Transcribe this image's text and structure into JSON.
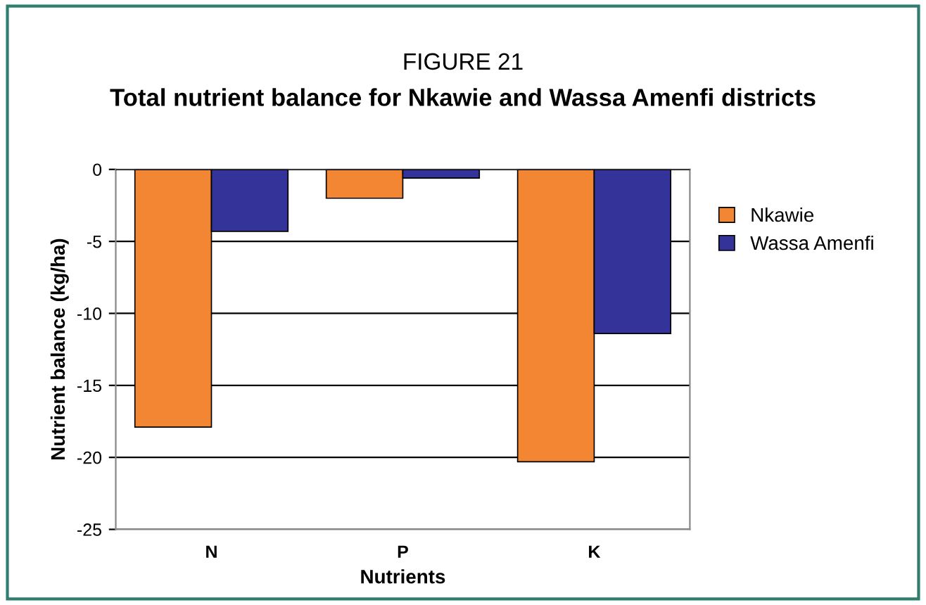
{
  "chart_data": {
    "type": "bar",
    "title": "FIGURE 21",
    "subtitle": "Total nutrient balance for Nkawie and Wassa Amenfi districts",
    "xlabel": "Nutrients",
    "ylabel": "Nutrient balance (kg/ha)",
    "categories": [
      "N",
      "P",
      "K"
    ],
    "series": [
      {
        "name": "Nkawie",
        "color": "#f28633",
        "values": [
          -17.9,
          -2.0,
          -20.3
        ]
      },
      {
        "name": "Wassa Amenfi",
        "color": "#333399",
        "values": [
          -4.3,
          -0.6,
          -11.4
        ]
      }
    ],
    "ylim": [
      -25,
      0
    ],
    "yticks": [
      -25,
      -20,
      -15,
      -10,
      -5,
      0
    ],
    "grid": "y",
    "legend": "right"
  }
}
